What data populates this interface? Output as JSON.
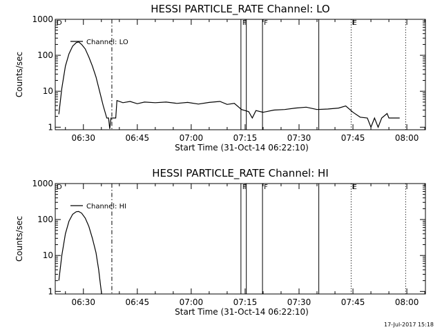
{
  "chart_data": [
    {
      "type": "line",
      "title": "HESSI PARTICLE_RATE Channel: LO",
      "xlabel": "Start Time (31-Oct-14 06:22:10)",
      "ylabel": "Counts/sec",
      "ylog": true,
      "ylim": [
        0.85,
        1000
      ],
      "xlim": [
        "06:22:10",
        "08:05:10"
      ],
      "x_ticks": [
        "06:30",
        "06:45",
        "07:00",
        "07:15",
        "07:30",
        "07:45",
        "08:00"
      ],
      "y_ticks": [
        "1",
        "10",
        "100",
        "1000"
      ],
      "legend": "Channel: LO",
      "series": [
        {
          "name": "Channel: LO",
          "points": [
            [
              "06:23:10",
              2.3
            ],
            [
              "06:24:00",
              12
            ],
            [
              "06:25:00",
              50
            ],
            [
              "06:26:00",
              110
            ],
            [
              "06:27:00",
              180
            ],
            [
              "06:28:00",
              225
            ],
            [
              "06:28:40",
              235
            ],
            [
              "06:29:30",
              200
            ],
            [
              "06:30:30",
              150
            ],
            [
              "06:31:30",
              90
            ],
            [
              "06:32:30",
              50
            ],
            [
              "06:33:30",
              25
            ],
            [
              "06:34:30",
              10
            ],
            [
              "06:35:30",
              4
            ],
            [
              "06:36:30",
              1.8
            ],
            [
              "06:37:00",
              1.8
            ],
            [
              "06:37:20",
              0.9
            ],
            [
              "06:37:40",
              1.8
            ],
            [
              "06:39:00",
              1.8
            ],
            [
              "06:39:20",
              5.5
            ],
            [
              "06:41:00",
              4.8
            ],
            [
              "06:43:00",
              5.2
            ],
            [
              "06:45:00",
              4.5
            ],
            [
              "06:47:00",
              5.0
            ],
            [
              "06:50:00",
              4.8
            ],
            [
              "06:53:00",
              5.0
            ],
            [
              "06:56:00",
              4.6
            ],
            [
              "06:59:00",
              4.9
            ],
            [
              "07:02:00",
              4.4
            ],
            [
              "07:05:00",
              4.9
            ],
            [
              "07:08:00",
              5.2
            ],
            [
              "07:10:00",
              4.3
            ],
            [
              "07:12:00",
              4.6
            ],
            [
              "07:14:00",
              3.1
            ],
            [
              "07:16:00",
              2.7
            ],
            [
              "07:17:00",
              1.8
            ],
            [
              "07:18:00",
              2.9
            ],
            [
              "07:20:00",
              2.6
            ],
            [
              "07:23:00",
              3.0
            ],
            [
              "07:26:00",
              3.1
            ],
            [
              "07:29:00",
              3.4
            ],
            [
              "07:32:00",
              3.6
            ],
            [
              "07:35:00",
              3.1
            ],
            [
              "07:38:00",
              3.2
            ],
            [
              "07:41:00",
              3.4
            ],
            [
              "07:43:00",
              3.9
            ],
            [
              "07:45:00",
              2.6
            ],
            [
              "07:47:00",
              1.9
            ],
            [
              "07:49:00",
              1.8
            ],
            [
              "07:50:00",
              1.0
            ],
            [
              "07:51:00",
              1.8
            ],
            [
              "07:52:00",
              1.0
            ],
            [
              "07:53:00",
              1.8
            ],
            [
              "07:54:30",
              2.4
            ],
            [
              "07:55:00",
              1.8
            ],
            [
              "07:58:00",
              1.8
            ]
          ]
        }
      ],
      "markers": [
        {
          "label": "D",
          "x": "06:22:10",
          "style": "solid"
        },
        {
          "label": "",
          "x": "06:37:55",
          "style": "dashdot"
        },
        {
          "label": "F",
          "x": "07:13:50",
          "style": "solid"
        },
        {
          "label": "",
          "x": "07:15:20",
          "style": "solid"
        },
        {
          "label": "F",
          "x": "07:19:50",
          "style": "solid"
        },
        {
          "label": "",
          "x": "07:35:30",
          "style": "solid"
        },
        {
          "label": "E",
          "x": "07:44:30",
          "style": "dotted"
        },
        {
          "label": "",
          "x": "07:59:40",
          "style": "dotted"
        }
      ]
    },
    {
      "type": "line",
      "title": "HESSI PARTICLE_RATE Channel: HI",
      "xlabel": "Start Time (31-Oct-14 06:22:10)",
      "ylabel": "Counts/sec",
      "ylog": true,
      "ylim": [
        0.85,
        1000
      ],
      "xlim": [
        "06:22:10",
        "08:05:10"
      ],
      "x_ticks": [
        "06:30",
        "06:45",
        "07:00",
        "07:15",
        "07:30",
        "07:45",
        "08:00"
      ],
      "y_ticks": [
        "1",
        "10",
        "100",
        "1000"
      ],
      "legend": "Channel: HI",
      "series": [
        {
          "name": "Channel: HI",
          "points": [
            [
              "06:23:10",
              2.0
            ],
            [
              "06:24:00",
              10
            ],
            [
              "06:25:00",
              40
            ],
            [
              "06:26:00",
              90
            ],
            [
              "06:27:00",
              140
            ],
            [
              "06:28:00",
              165
            ],
            [
              "06:28:40",
              168
            ],
            [
              "06:29:30",
              150
            ],
            [
              "06:30:30",
              110
            ],
            [
              "06:31:30",
              65
            ],
            [
              "06:32:30",
              30
            ],
            [
              "06:33:30",
              12
            ],
            [
              "06:34:15",
              4
            ],
            [
              "06:34:45",
              1.5
            ],
            [
              "06:35:05",
              0.85
            ]
          ]
        }
      ],
      "markers": [
        {
          "label": "D",
          "x": "06:22:10",
          "style": "solid"
        },
        {
          "label": "",
          "x": "06:37:55",
          "style": "dashdot"
        },
        {
          "label": "F",
          "x": "07:13:50",
          "style": "solid"
        },
        {
          "label": "",
          "x": "07:15:20",
          "style": "solid"
        },
        {
          "label": "F",
          "x": "07:19:50",
          "style": "solid"
        },
        {
          "label": "",
          "x": "07:35:30",
          "style": "solid"
        },
        {
          "label": "E",
          "x": "07:44:30",
          "style": "dotted"
        },
        {
          "label": "",
          "x": "07:59:40",
          "style": "dotted"
        }
      ]
    }
  ],
  "footer": {
    "stamp": "17-Jul-2017 15:18"
  }
}
